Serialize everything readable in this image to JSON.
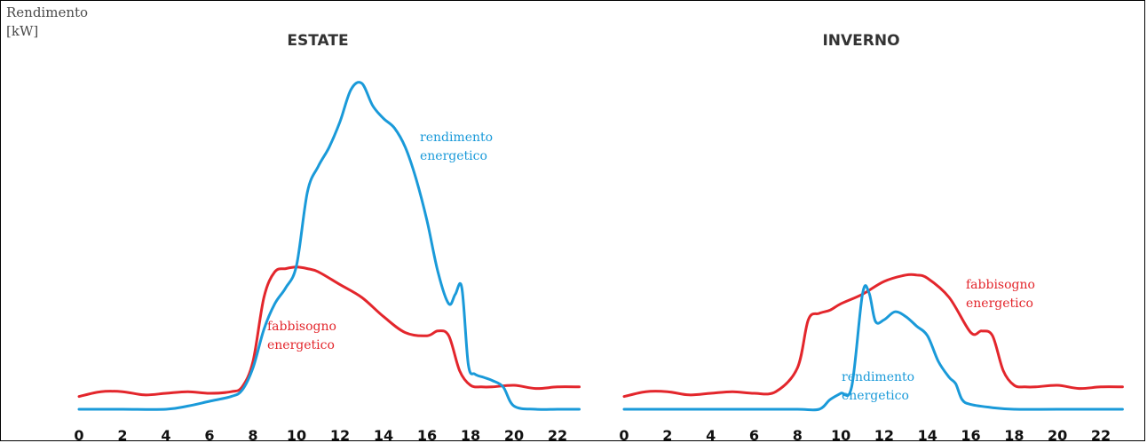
{
  "y_axis_label": [
    "Rendimento",
    "[kW]"
  ],
  "colors": {
    "demand": "#e3262c",
    "yield": "#1a9ad9"
  },
  "chart_data": [
    {
      "type": "line",
      "title": "ESTATE",
      "xlabel": "",
      "ylabel": "Rendimento [kW]",
      "xlim": [
        0,
        23
      ],
      "ylim": [
        0,
        10
      ],
      "grid": false,
      "x_ticks": [
        0,
        2,
        4,
        6,
        8,
        10,
        12,
        14,
        16,
        18,
        20,
        22
      ],
      "series": [
        {
          "name": "fabbisogno energetico",
          "color": "#e3262c",
          "x": [
            0,
            1,
            2,
            3,
            4,
            5,
            6,
            7,
            7.5,
            8,
            8.5,
            9,
            9.5,
            10,
            10.5,
            11,
            12,
            13,
            14,
            15,
            16,
            16.5,
            17,
            17.5,
            18,
            18.5,
            19,
            20,
            21,
            22,
            23
          ],
          "y": [
            0.4,
            0.55,
            0.55,
            0.45,
            0.5,
            0.55,
            0.5,
            0.55,
            0.7,
            1.5,
            3.5,
            4.3,
            4.4,
            4.45,
            4.4,
            4.3,
            3.9,
            3.5,
            2.9,
            2.4,
            2.3,
            2.45,
            2.3,
            1.2,
            0.75,
            0.7,
            0.7,
            0.75,
            0.65,
            0.7,
            0.7
          ]
        },
        {
          "name": "rendimento energetico",
          "color": "#1a9ad9",
          "x": [
            0,
            2,
            4,
            5,
            6,
            7,
            7.5,
            8,
            8.5,
            9,
            9.5,
            10,
            10.5,
            11,
            11.5,
            12,
            12.5,
            13,
            13.5,
            14,
            14.5,
            15,
            15.5,
            16,
            16.5,
            17,
            17.3,
            17.6,
            17.9,
            18.2,
            18.6,
            19,
            19.5,
            20,
            21,
            22,
            23
          ],
          "y": [
            0,
            0,
            0,
            0.1,
            0.25,
            0.4,
            0.6,
            1.3,
            2.5,
            3.3,
            3.8,
            4.5,
            6.8,
            7.6,
            8.2,
            9.0,
            10.0,
            10.2,
            9.5,
            9.1,
            8.8,
            8.2,
            7.2,
            5.9,
            4.3,
            3.3,
            3.6,
            3.8,
            1.4,
            1.1,
            1.0,
            0.9,
            0.7,
            0.1,
            0,
            0,
            0
          ]
        }
      ],
      "annotations": [
        {
          "text": [
            "rendimento",
            "energetico"
          ],
          "series": "rendimento energetico",
          "x": 17.4,
          "y": 8.1
        },
        {
          "text": [
            "fabbisogno",
            "energetico"
          ],
          "series": "fabbisogno energetico",
          "x": 8.8,
          "y": 2.65
        }
      ]
    },
    {
      "type": "line",
      "title": "INVERNO",
      "xlabel": "",
      "ylabel": "Rendimento [kW]",
      "xlim": [
        0,
        23
      ],
      "ylim": [
        0,
        10
      ],
      "grid": false,
      "x_ticks": [
        0,
        2,
        4,
        6,
        8,
        10,
        12,
        14,
        16,
        18,
        20,
        22
      ],
      "series": [
        {
          "name": "fabbisogno energetico",
          "color": "#e3262c",
          "x": [
            0,
            1,
            2,
            3,
            4,
            5,
            6,
            7,
            8,
            8.5,
            9,
            9.5,
            10,
            11,
            12,
            13,
            13.5,
            14,
            15,
            16,
            16.5,
            17,
            17.5,
            18,
            18.5,
            19,
            20,
            21,
            22,
            23
          ],
          "y": [
            0.4,
            0.55,
            0.55,
            0.45,
            0.5,
            0.55,
            0.5,
            0.55,
            1.3,
            2.8,
            3.0,
            3.1,
            3.3,
            3.6,
            4.0,
            4.2,
            4.2,
            4.1,
            3.5,
            2.4,
            2.45,
            2.3,
            1.2,
            0.75,
            0.7,
            0.7,
            0.75,
            0.65,
            0.7,
            0.7
          ]
        },
        {
          "name": "rendimento energetico",
          "color": "#1a9ad9",
          "x": [
            0,
            2,
            4,
            6,
            8,
            9,
            9.5,
            10,
            10.5,
            11,
            11.3,
            11.6,
            12,
            12.5,
            13,
            13.5,
            14,
            14.5,
            15,
            15.3,
            15.6,
            16,
            17,
            18,
            20,
            23
          ],
          "y": [
            0,
            0,
            0,
            0,
            0,
            0,
            0.3,
            0.5,
            0.7,
            3.6,
            3.65,
            2.75,
            2.8,
            3.05,
            2.9,
            2.6,
            2.3,
            1.5,
            1.0,
            0.8,
            0.3,
            0.15,
            0.05,
            0,
            0,
            0
          ]
        }
      ],
      "annotations": [
        {
          "text": [
            "fabbisogno",
            "energetico"
          ],
          "series": "fabbisogno energetico",
          "x": 16.3,
          "y": 3.9
        },
        {
          "text": [
            "rendimento",
            "energetico"
          ],
          "series": "rendimento energetico",
          "x": 13.3,
          "y": 0.9
        }
      ]
    }
  ]
}
